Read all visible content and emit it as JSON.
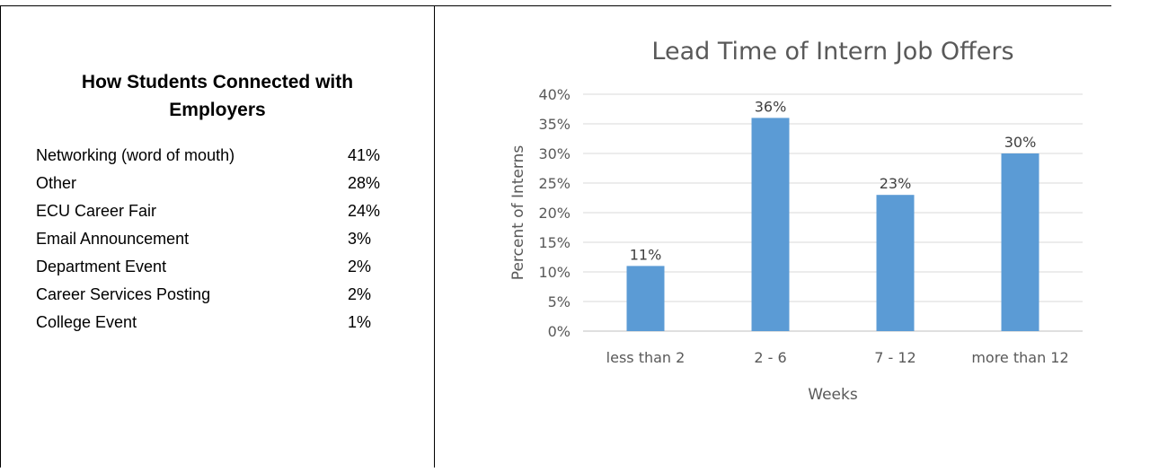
{
  "left_table": {
    "title_line1": "How Students Connected with",
    "title_line2": "Employers",
    "rows": [
      {
        "label": "Networking (word of mouth)",
        "value": "41%"
      },
      {
        "label": "Other",
        "value": "28%"
      },
      {
        "label": "ECU Career Fair",
        "value": "24%"
      },
      {
        "label": "Email Announcement",
        "value": "3%"
      },
      {
        "label": "Department Event",
        "value": "2%"
      },
      {
        "label": "Career Services Posting",
        "value": "2%"
      },
      {
        "label": "College Event",
        "value": "1%"
      }
    ]
  },
  "chart_data": {
    "type": "bar",
    "title": "Lead Time of Intern Job Offers",
    "xlabel": "Weeks",
    "ylabel": "Percent of Interns",
    "categories": [
      "less than 2",
      "2 - 6",
      "7 - 12",
      "more than 12"
    ],
    "values": [
      11,
      36,
      23,
      30
    ],
    "data_labels": [
      "11%",
      "36%",
      "23%",
      "30%"
    ],
    "ylim": [
      0,
      40
    ],
    "yticks": [
      "0%",
      "5%",
      "10%",
      "15%",
      "20%",
      "25%",
      "30%",
      "35%",
      "40%"
    ],
    "grid": true,
    "bar_color": "#5b9bd5",
    "grid_color": "#d9d9d9"
  }
}
